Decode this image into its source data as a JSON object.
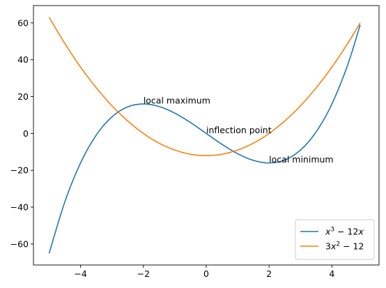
{
  "chart_data": {
    "type": "line",
    "title": "",
    "xlabel": "",
    "ylabel": "",
    "xlim": [
      -5.5,
      5.5
    ],
    "ylim": [
      -71.4,
      69.4
    ],
    "xticks": [
      -4,
      -2,
      0,
      2,
      4
    ],
    "yticks": [
      -60,
      -40,
      -20,
      0,
      20,
      40,
      60
    ],
    "grid": false,
    "legend_position": "lower-right",
    "series": [
      {
        "name": "x^3 - 12x",
        "color": "#1f77b4",
        "x_range": [
          -5,
          4.9
        ],
        "x": [
          -5,
          -4.5,
          -4,
          -3.5,
          -3,
          -2.5,
          -2,
          -1.5,
          -1,
          -0.5,
          0,
          0.5,
          1,
          1.5,
          2,
          2.5,
          3,
          3.5,
          4,
          4.5,
          4.9
        ],
        "y": [
          -65,
          -37.1,
          -16,
          -0.9,
          9,
          14.4,
          16,
          14.6,
          11,
          5.9,
          0,
          -5.9,
          -11,
          -14.6,
          -16,
          -14.4,
          -9,
          0.9,
          16,
          37.1,
          58.9
        ]
      },
      {
        "name": "3x^2 - 12",
        "color": "#ff7f0e",
        "x_range": [
          -5,
          4.9
        ],
        "x": [
          -5,
          -4.5,
          -4,
          -3.5,
          -3,
          -2.5,
          -2,
          -1.5,
          -1,
          -0.5,
          0,
          0.5,
          1,
          1.5,
          2,
          2.5,
          3,
          3.5,
          4,
          4.5,
          4.9
        ],
        "y": [
          63,
          48.8,
          36,
          24.8,
          15,
          6.8,
          0,
          -5.3,
          -9,
          -11.3,
          -12,
          -11.3,
          -9,
          -5.3,
          0,
          6.8,
          15,
          24.8,
          36,
          48.8,
          60
        ]
      }
    ],
    "annotations": [
      {
        "text": "local maximum",
        "x": -2,
        "y": 16
      },
      {
        "text": "inflection point",
        "x": 0,
        "y": 0
      },
      {
        "text": "local minimum",
        "x": 2,
        "y": -16
      }
    ],
    "legend": [
      {
        "base": "x",
        "sup": "3",
        "rest": " − 12",
        "var": "x"
      },
      {
        "base": "3x",
        "sup": "2",
        "rest": " − 12",
        "var": ""
      }
    ]
  }
}
